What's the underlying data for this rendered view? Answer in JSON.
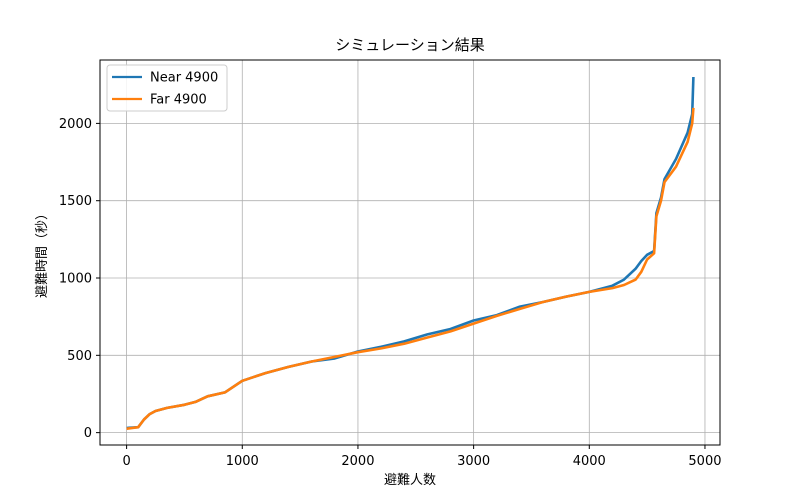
{
  "chart_data": {
    "type": "line",
    "title": "シミュレーション結果",
    "xlabel": "避難人数",
    "ylabel": "避難時間（秒）",
    "xlim": [
      -230,
      5130
    ],
    "ylim": [
      -80,
      2410
    ],
    "xticks": [
      0,
      1000,
      2000,
      3000,
      4000,
      5000
    ],
    "yticks": [
      0,
      500,
      1000,
      1500,
      2000
    ],
    "grid": true,
    "legend": "top-left",
    "series": [
      {
        "name": "Near 4900",
        "color": "#1f77b4",
        "points": [
          [
            0,
            30
          ],
          [
            100,
            35
          ],
          [
            150,
            85
          ],
          [
            200,
            120
          ],
          [
            250,
            140
          ],
          [
            350,
            160
          ],
          [
            500,
            180
          ],
          [
            600,
            200
          ],
          [
            700,
            235
          ],
          [
            850,
            260
          ],
          [
            1000,
            335
          ],
          [
            1200,
            385
          ],
          [
            1400,
            425
          ],
          [
            1600,
            460
          ],
          [
            1800,
            480
          ],
          [
            2000,
            525
          ],
          [
            2200,
            555
          ],
          [
            2400,
            590
          ],
          [
            2600,
            635
          ],
          [
            2800,
            670
          ],
          [
            3000,
            725
          ],
          [
            3200,
            760
          ],
          [
            3400,
            815
          ],
          [
            3600,
            845
          ],
          [
            3800,
            880
          ],
          [
            4000,
            910
          ],
          [
            4200,
            950
          ],
          [
            4300,
            990
          ],
          [
            4400,
            1060
          ],
          [
            4450,
            1110
          ],
          [
            4500,
            1150
          ],
          [
            4560,
            1175
          ],
          [
            4580,
            1420
          ],
          [
            4620,
            1520
          ],
          [
            4650,
            1640
          ],
          [
            4750,
            1770
          ],
          [
            4850,
            1940
          ],
          [
            4890,
            2060
          ],
          [
            4900,
            2300
          ]
        ]
      },
      {
        "name": "Far 4900",
        "color": "#ff7f0e",
        "points": [
          [
            0,
            25
          ],
          [
            100,
            35
          ],
          [
            150,
            85
          ],
          [
            200,
            120
          ],
          [
            250,
            140
          ],
          [
            350,
            160
          ],
          [
            500,
            180
          ],
          [
            600,
            200
          ],
          [
            700,
            235
          ],
          [
            850,
            260
          ],
          [
            1000,
            335
          ],
          [
            1200,
            385
          ],
          [
            1400,
            425
          ],
          [
            1600,
            460
          ],
          [
            1800,
            490
          ],
          [
            2000,
            520
          ],
          [
            2200,
            545
          ],
          [
            2400,
            575
          ],
          [
            2600,
            615
          ],
          [
            2800,
            655
          ],
          [
            3000,
            705
          ],
          [
            3200,
            755
          ],
          [
            3400,
            800
          ],
          [
            3600,
            845
          ],
          [
            3800,
            880
          ],
          [
            4000,
            910
          ],
          [
            4200,
            935
          ],
          [
            4300,
            955
          ],
          [
            4400,
            990
          ],
          [
            4450,
            1040
          ],
          [
            4500,
            1120
          ],
          [
            4560,
            1160
          ],
          [
            4580,
            1400
          ],
          [
            4620,
            1500
          ],
          [
            4650,
            1620
          ],
          [
            4750,
            1720
          ],
          [
            4850,
            1880
          ],
          [
            4890,
            2000
          ],
          [
            4900,
            2100
          ]
        ]
      }
    ]
  }
}
